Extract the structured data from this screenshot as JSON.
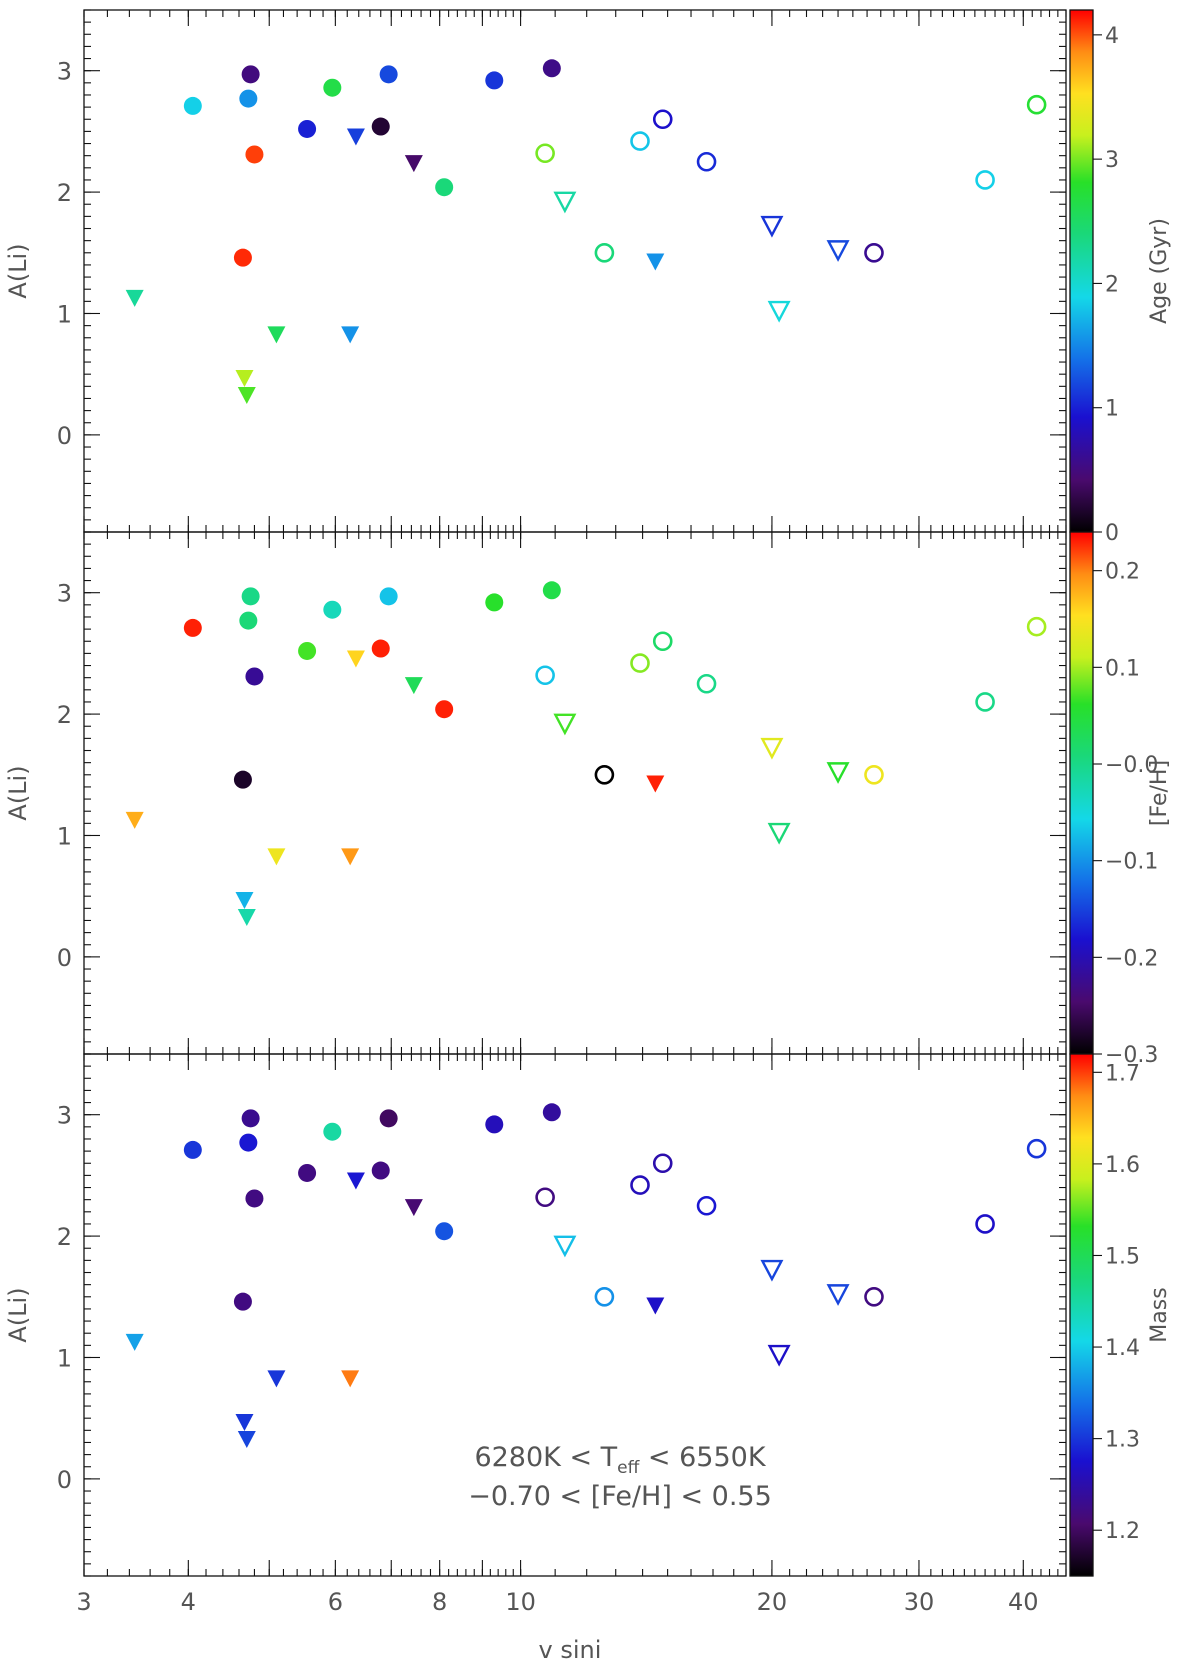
{
  "chart_data": {
    "type": "scatter",
    "xlabel": "v sini",
    "x_scale": "log",
    "xlim": [
      3,
      45
    ],
    "x_ticks": [
      "3",
      "4",
      "6",
      "8",
      "10",
      "20",
      "30",
      "40"
    ],
    "ylabel": "A(Li)",
    "ylim": [
      -0.8,
      3.5
    ],
    "y_ticks": [
      "0",
      "1",
      "2",
      "3"
    ],
    "markers": {
      "filled_circle": "detection, filled",
      "filled_triangle": "upper limit, filled",
      "open_circle": "detection, open",
      "open_triangle": "upper limit, open"
    },
    "points": [
      {
        "x": 4.05,
        "y": 2.71,
        "marker": "filled_circle"
      },
      {
        "x": 4.75,
        "y": 2.97,
        "marker": "filled_circle"
      },
      {
        "x": 4.72,
        "y": 2.77,
        "marker": "filled_circle"
      },
      {
        "x": 4.8,
        "y": 2.31,
        "marker": "filled_circle"
      },
      {
        "x": 4.65,
        "y": 1.46,
        "marker": "filled_circle"
      },
      {
        "x": 5.55,
        "y": 2.52,
        "marker": "filled_circle"
      },
      {
        "x": 5.95,
        "y": 2.86,
        "marker": "filled_circle"
      },
      {
        "x": 6.8,
        "y": 2.54,
        "marker": "filled_circle"
      },
      {
        "x": 6.95,
        "y": 2.97,
        "marker": "filled_circle"
      },
      {
        "x": 8.1,
        "y": 2.04,
        "marker": "filled_circle"
      },
      {
        "x": 9.3,
        "y": 2.92,
        "marker": "filled_circle"
      },
      {
        "x": 10.9,
        "y": 3.02,
        "marker": "filled_circle"
      },
      {
        "x": 3.45,
        "y": 1.12,
        "marker": "filled_triangle"
      },
      {
        "x": 4.67,
        "y": 0.46,
        "marker": "filled_triangle"
      },
      {
        "x": 4.7,
        "y": 0.32,
        "marker": "filled_triangle"
      },
      {
        "x": 5.1,
        "y": 0.82,
        "marker": "filled_triangle"
      },
      {
        "x": 6.25,
        "y": 0.82,
        "marker": "filled_triangle"
      },
      {
        "x": 6.35,
        "y": 2.45,
        "marker": "filled_triangle"
      },
      {
        "x": 7.45,
        "y": 2.23,
        "marker": "filled_triangle"
      },
      {
        "x": 14.5,
        "y": 1.42,
        "marker": "filled_triangle"
      },
      {
        "x": 10.7,
        "y": 2.32,
        "marker": "open_circle"
      },
      {
        "x": 12.6,
        "y": 1.5,
        "marker": "open_circle"
      },
      {
        "x": 13.9,
        "y": 2.42,
        "marker": "open_circle"
      },
      {
        "x": 14.8,
        "y": 2.6,
        "marker": "open_circle"
      },
      {
        "x": 16.7,
        "y": 2.25,
        "marker": "open_circle"
      },
      {
        "x": 26.5,
        "y": 1.5,
        "marker": "open_circle"
      },
      {
        "x": 36.0,
        "y": 2.1,
        "marker": "open_circle"
      },
      {
        "x": 41.5,
        "y": 2.72,
        "marker": "open_circle"
      },
      {
        "x": 11.3,
        "y": 1.92,
        "marker": "open_triangle"
      },
      {
        "x": 20.0,
        "y": 1.72,
        "marker": "open_triangle"
      },
      {
        "x": 20.4,
        "y": 1.02,
        "marker": "open_triangle"
      },
      {
        "x": 24.0,
        "y": 1.52,
        "marker": "open_triangle"
      }
    ],
    "panels": [
      {
        "colorbar_label": "Age (Gyr)",
        "cb_range": [
          0,
          4.2
        ],
        "cb_ticks": [
          "0",
          "1",
          "2",
          "3",
          "4"
        ],
        "cb_tick_values": [
          0,
          1,
          2,
          3,
          4
        ],
        "color_values": [
          1.85,
          0.5,
          1.55,
          4.05,
          4.1,
          1.0,
          2.65,
          0.2,
          1.2,
          2.4,
          1.1,
          0.55,
          2.25,
          3.15,
          2.9,
          2.55,
          1.55,
          1.15,
          0.4,
          1.55,
          3.0,
          2.4,
          1.8,
          0.9,
          1.05,
          0.6,
          1.85,
          2.75,
          2.2,
          1.1,
          1.95,
          1.2
        ],
        "annotation": []
      },
      {
        "colorbar_label": "[Fe/H]",
        "cb_range": [
          -0.3,
          0.24
        ],
        "cb_ticks": [
          "−0.3",
          "−0.2",
          "−0.1",
          "−0.0",
          "0.1",
          "0.2"
        ],
        "cb_tick_values": [
          -0.3,
          -0.2,
          -0.1,
          0.0,
          0.1,
          0.2
        ],
        "color_values": [
          0.23,
          0.0,
          0.01,
          -0.22,
          -0.28,
          0.07,
          -0.03,
          0.23,
          -0.07,
          0.23,
          0.06,
          0.04,
          0.18,
          -0.08,
          -0.02,
          0.14,
          0.19,
          0.16,
          0.03,
          0.23,
          -0.07,
          -0.3,
          0.09,
          0.02,
          0.0,
          0.14,
          0.0,
          0.1,
          0.07,
          0.13,
          0.01,
          0.06
        ],
        "annotation": []
      },
      {
        "colorbar_label": "Mass",
        "cb_range": [
          1.15,
          1.72
        ],
        "cb_ticks": [
          "1.2",
          "1.3",
          "1.4",
          "1.5",
          "1.6",
          "1.7"
        ],
        "cb_tick_values": [
          1.2,
          1.3,
          1.4,
          1.5,
          1.6,
          1.7
        ],
        "color_values": [
          1.3,
          1.23,
          1.28,
          1.22,
          1.22,
          1.22,
          1.45,
          1.22,
          1.2,
          1.32,
          1.26,
          1.24,
          1.37,
          1.3,
          1.31,
          1.3,
          1.68,
          1.28,
          1.21,
          1.27,
          1.22,
          1.36,
          1.26,
          1.25,
          1.28,
          1.22,
          1.27,
          1.3,
          1.39,
          1.31,
          1.27,
          1.31
        ],
        "annotation": [
          "6280K < T",
          "eff",
          " < 6550K",
          "−0.70 < [Fe/H] < 0.55"
        ]
      }
    ]
  }
}
